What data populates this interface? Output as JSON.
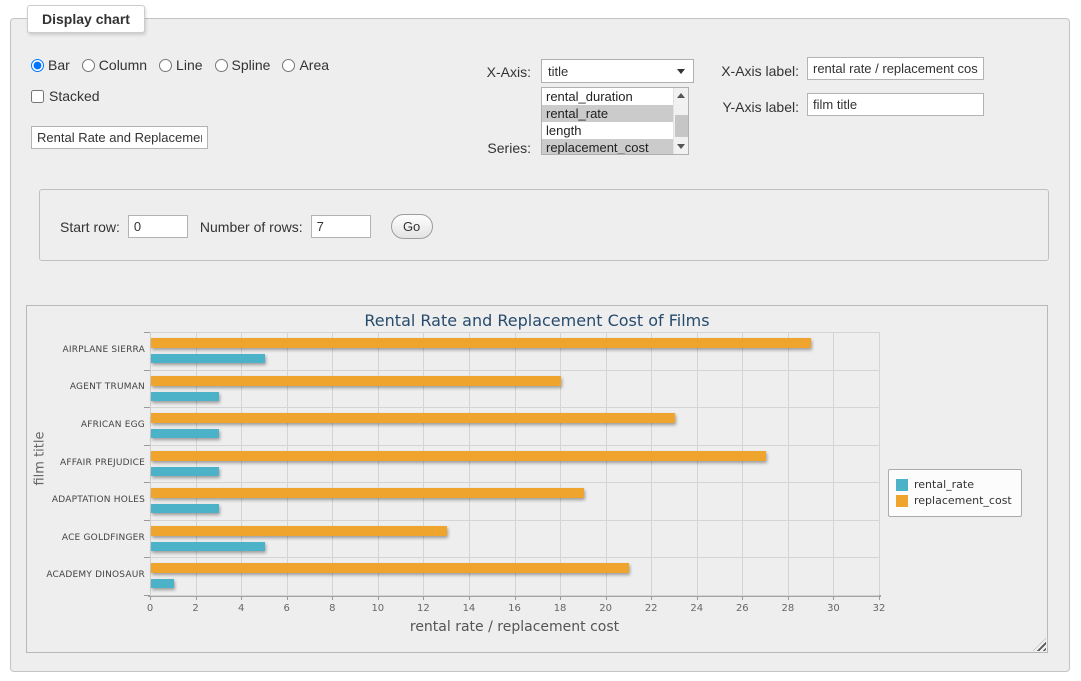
{
  "panel": {
    "legend": "Display chart"
  },
  "chart_type": {
    "options": [
      "Bar",
      "Column",
      "Line",
      "Spline",
      "Area"
    ],
    "selected": "Bar"
  },
  "stacked": {
    "label": "Stacked",
    "checked": false
  },
  "title_input": {
    "value": "Rental Rate and Replacement Cost of Films"
  },
  "x_axis_select": {
    "label": "X-Axis:",
    "selected": "title"
  },
  "series_select": {
    "label": "Series:",
    "options": [
      {
        "label": "rental_duration",
        "selected": false
      },
      {
        "label": "rental_rate",
        "selected": true
      },
      {
        "label": "length",
        "selected": false
      },
      {
        "label": "replacement_cost",
        "selected": true
      }
    ]
  },
  "x_axis_label": {
    "label": "X-Axis label:",
    "value": "rental rate / replacement cost"
  },
  "y_axis_label": {
    "label": "Y-Axis label:",
    "value": "film title"
  },
  "rows_panel": {
    "start_row_label": "Start row:",
    "start_row_value": "0",
    "num_rows_label": "Number of rows:",
    "num_rows_value": "7",
    "go_label": "Go"
  },
  "chart_data": {
    "type": "bar",
    "title": "Rental Rate and Replacement Cost of Films",
    "xlabel": "rental rate / replacement cost",
    "ylabel": "film title",
    "categories": [
      "AIRPLANE SIERRA",
      "AGENT TRUMAN",
      "AFRICAN EGG",
      "AFFAIR PREJUDICE",
      "ADAPTATION HOLES",
      "ACE GOLDFINGER",
      "ACADEMY DINOSAUR"
    ],
    "series": [
      {
        "name": "rental_rate",
        "color": "#4CB2C8",
        "values": [
          4.99,
          2.99,
          2.99,
          2.99,
          2.99,
          4.99,
          0.99
        ]
      },
      {
        "name": "replacement_cost",
        "color": "#EFA42E",
        "values": [
          28.99,
          17.99,
          22.99,
          26.99,
          18.99,
          12.99,
          20.99
        ]
      }
    ],
    "xlim": [
      0,
      32
    ],
    "tick_step": 2,
    "grid": true,
    "legend_position": "right",
    "row_order": [
      "replacement_cost",
      "rental_rate"
    ]
  }
}
